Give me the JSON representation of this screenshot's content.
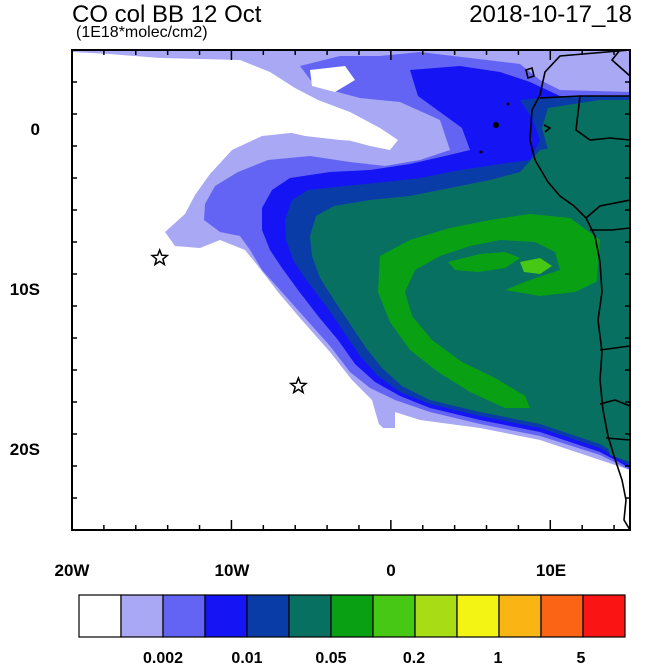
{
  "header": {
    "title": "CO col BB 12 Oct",
    "units": "(1E18*molec/cm2)",
    "valid_time": "2018-10-17_18"
  },
  "map": {
    "lon_range": [
      -20,
      15
    ],
    "lat_range": [
      -25,
      5
    ],
    "lon_tick_labels": [
      "20W",
      "10W",
      "0",
      "10E"
    ],
    "lat_tick_labels": [
      "0",
      "10S",
      "20S"
    ],
    "markers": [
      {
        "name": "star-marker",
        "lon": -14.5,
        "lat": -8
      },
      {
        "name": "star-marker",
        "lon": -5.8,
        "lat": -16
      }
    ]
  },
  "colorbar": {
    "colors": [
      "#ffffff",
      "#a8a8f4",
      "#6464f4",
      "#1414f4",
      "#0a3ca8",
      "#087060",
      "#0aa014",
      "#46c814",
      "#a8dc14",
      "#f4f414",
      "#fab414",
      "#fa6414",
      "#fa1414"
    ],
    "labels": [
      "0.002",
      "0.01",
      "0.05",
      "0.2",
      "1",
      "5"
    ]
  }
}
